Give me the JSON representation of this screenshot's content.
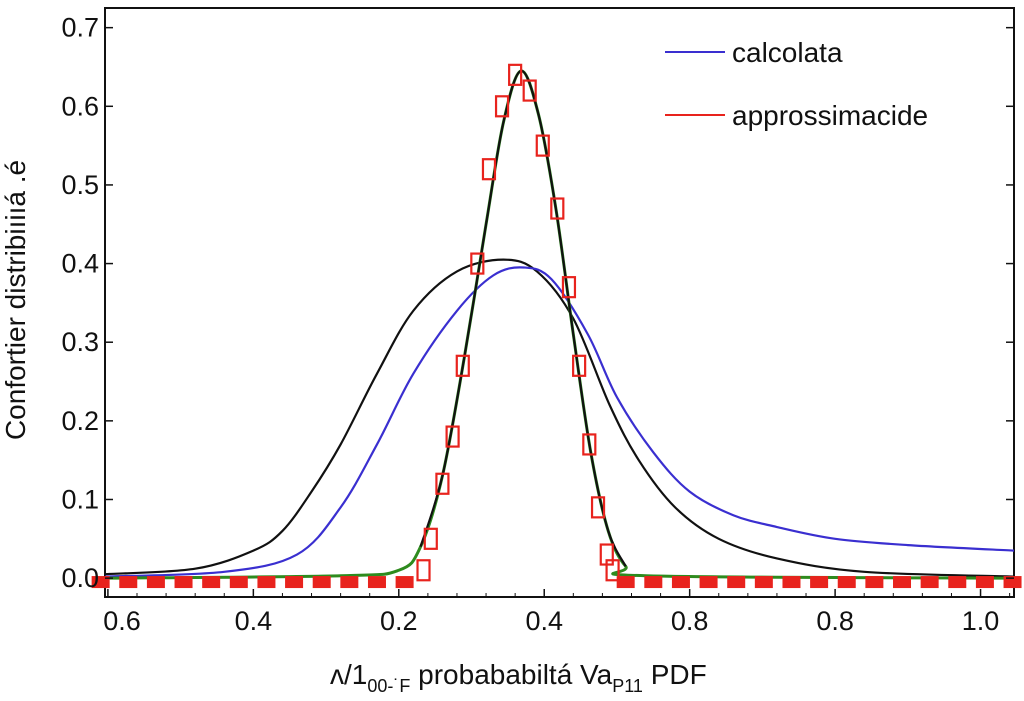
{
  "chart_data": {
    "type": "line",
    "title": "",
    "ylabel": "Confortier distribiıiıá .é",
    "xlabel": {
      "p1": "ʌ/1",
      "s1": "00-˙F",
      "p2": " probababiltá Va",
      "s2": "P11",
      "p3": " PDF"
    },
    "x_axis_note": "x values given in tick-index units; tick labels as printed",
    "xticks": [
      "0.6",
      "0.4",
      "0.2",
      "0.4",
      "0.8",
      "0.8",
      "1.0"
    ],
    "xlim": [
      -0.02,
      6.23
    ],
    "yticks": [
      "0.0",
      "0.1",
      "0.2",
      "0.3",
      "0.4",
      "0.5",
      "0.6",
      "0.7"
    ],
    "ylim": [
      -0.024,
      0.725
    ],
    "grid": false,
    "legend": {
      "position": "top-right",
      "entries": [
        {
          "label": "calcolata",
          "color": "#3a2fd0"
        },
        {
          "label": "approssimacide",
          "color": "#e8231d"
        }
      ]
    },
    "series": [
      {
        "id": "wide-black",
        "color": "#111111",
        "points": [
          [
            -0.02,
            0.005
          ],
          [
            0.6,
            0.012
          ],
          [
            1.0,
            0.035
          ],
          [
            1.2,
            0.06
          ],
          [
            1.4,
            0.11
          ],
          [
            1.6,
            0.17
          ],
          [
            1.85,
            0.26
          ],
          [
            2.1,
            0.34
          ],
          [
            2.4,
            0.39
          ],
          [
            2.72,
            0.405
          ],
          [
            2.95,
            0.39
          ],
          [
            3.2,
            0.33
          ],
          [
            3.45,
            0.22
          ],
          [
            3.65,
            0.15
          ],
          [
            3.9,
            0.09
          ],
          [
            4.2,
            0.05
          ],
          [
            4.6,
            0.025
          ],
          [
            5.2,
            0.008
          ],
          [
            6.23,
            0.002
          ]
        ]
      },
      {
        "id": "calcolata",
        "color": "#3a2fd0",
        "points": [
          [
            -0.02,
            0.002
          ],
          [
            0.8,
            0.008
          ],
          [
            1.3,
            0.03
          ],
          [
            1.6,
            0.09
          ],
          [
            1.85,
            0.17
          ],
          [
            2.1,
            0.26
          ],
          [
            2.4,
            0.34
          ],
          [
            2.65,
            0.385
          ],
          [
            2.86,
            0.395
          ],
          [
            3.05,
            0.38
          ],
          [
            3.3,
            0.31
          ],
          [
            3.5,
            0.23
          ],
          [
            3.75,
            0.16
          ],
          [
            4.0,
            0.11
          ],
          [
            4.3,
            0.08
          ],
          [
            4.6,
            0.065
          ],
          [
            5.0,
            0.05
          ],
          [
            5.5,
            0.042
          ],
          [
            6.23,
            0.035
          ]
        ]
      },
      {
        "id": "narrow-green",
        "color": "#2e8b1e",
        "points": [
          [
            -0.02,
            0.0
          ],
          [
            1.6,
            0.003
          ],
          [
            2.0,
            0.01
          ],
          [
            2.15,
            0.04
          ],
          [
            2.3,
            0.13
          ],
          [
            2.45,
            0.28
          ],
          [
            2.6,
            0.45
          ],
          [
            2.72,
            0.58
          ],
          [
            2.84,
            0.645
          ],
          [
            2.96,
            0.59
          ],
          [
            3.08,
            0.47
          ],
          [
            3.2,
            0.31
          ],
          [
            3.32,
            0.16
          ],
          [
            3.44,
            0.06
          ],
          [
            3.56,
            0.015
          ],
          [
            3.7,
            0.003
          ],
          [
            6.23,
            0.0
          ]
        ]
      },
      {
        "id": "narrow-black",
        "color": "#111111",
        "points": [
          [
            2.15,
            0.04
          ],
          [
            2.3,
            0.13
          ],
          [
            2.45,
            0.28
          ],
          [
            2.6,
            0.45
          ],
          [
            2.72,
            0.58
          ],
          [
            2.84,
            0.645
          ],
          [
            2.96,
            0.59
          ],
          [
            3.08,
            0.47
          ],
          [
            3.2,
            0.31
          ],
          [
            3.32,
            0.16
          ],
          [
            3.44,
            0.06
          ],
          [
            3.56,
            0.015
          ]
        ]
      }
    ],
    "approssimacide_markers": [
      [
        2.17,
        0.01
      ],
      [
        2.22,
        0.05
      ],
      [
        2.3,
        0.12
      ],
      [
        2.37,
        0.18
      ],
      [
        2.44,
        0.27
      ],
      [
        2.54,
        0.4
      ],
      [
        2.62,
        0.52
      ],
      [
        2.71,
        0.6
      ],
      [
        2.8,
        0.64
      ],
      [
        2.9,
        0.62
      ],
      [
        2.99,
        0.55
      ],
      [
        3.09,
        0.47
      ],
      [
        3.17,
        0.37
      ],
      [
        3.24,
        0.27
      ],
      [
        3.31,
        0.17
      ],
      [
        3.37,
        0.09
      ],
      [
        3.43,
        0.03
      ],
      [
        3.47,
        0.01
      ]
    ],
    "approssimacide_baseline": [
      -0.005,
      0.0,
      2.05,
      3.55,
      6.23
    ]
  }
}
